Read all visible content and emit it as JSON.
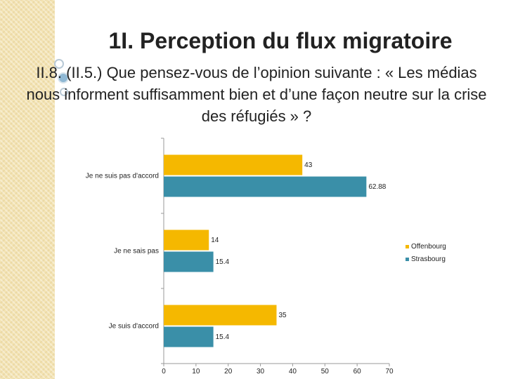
{
  "slide": {
    "title": "1I.  Perception du flux migratoire",
    "subtitle": "II.8. (II.5.) Que pensez-vous de l’opinion suivante : « Les médias nous informent suffisamment bien et d’une façon neutre sur la crise des réfugiés » ?"
  },
  "colors": {
    "accent_strip": "#f3e3b3",
    "circle_outline": "#b8c9d6",
    "circle_fill": "#8fb8d4"
  },
  "chart_data": {
    "type": "bar",
    "orientation": "horizontal",
    "categories": [
      "Je ne suis pas d'accord",
      "Je ne sais pas",
      "Je suis d'accord"
    ],
    "series": [
      {
        "name": "Offenbourg",
        "color": "#f5b800",
        "values": [
          43,
          14,
          35
        ],
        "labels": [
          "43",
          "14",
          "35"
        ]
      },
      {
        "name": "Strasbourg",
        "color": "#3a8fa8",
        "values": [
          62.88,
          15.4,
          15.4
        ],
        "labels": [
          "62.88",
          "15.4",
          "15.4"
        ]
      }
    ],
    "xlim": [
      0,
      70
    ],
    "xticks": [
      0,
      10,
      20,
      30,
      40,
      50,
      60,
      70
    ],
    "xtick_labels": [
      "0",
      "10",
      "20",
      "30",
      "40",
      "50",
      "60",
      "70"
    ],
    "legend_position": "right",
    "grid": false,
    "xlabel": "",
    "ylabel": ""
  }
}
